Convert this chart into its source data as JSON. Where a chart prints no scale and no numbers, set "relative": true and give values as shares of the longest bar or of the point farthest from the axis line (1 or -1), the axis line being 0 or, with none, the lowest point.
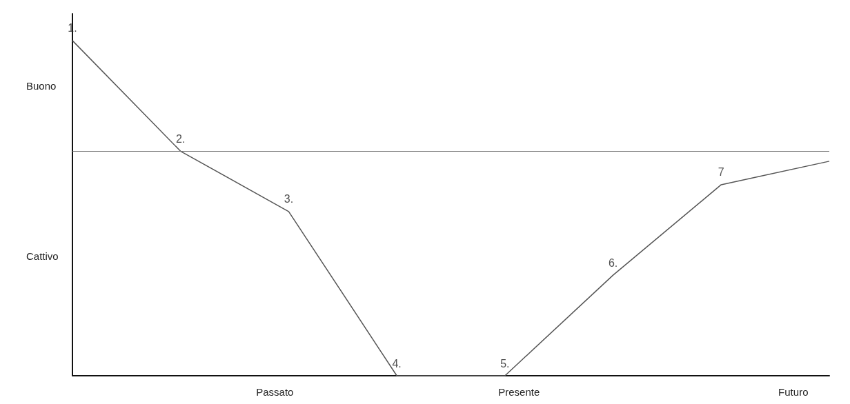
{
  "chart_data": {
    "type": "line",
    "relative": true,
    "categories": [
      null,
      null,
      null,
      null,
      null,
      null,
      null,
      null
    ],
    "values": [
      1,
      0.67,
      0.49,
      0,
      0,
      0.3,
      0.57,
      0.64
    ],
    "color": "#555555",
    "marker": "none",
    "line_style": "solid",
    "annotations": [
      "Buono",
      "Cattivo",
      "Passato",
      "Presente",
      "Futuro",
      {
        "text": "1.",
        "y": 1
      },
      {
        "text": "2.",
        "y": 0.67
      },
      {
        "text": "3.",
        "y": 0.49
      },
      {
        "text": "4.",
        "y": 0
      },
      {
        "text": "5.",
        "y": 0
      },
      {
        "text": "6.",
        "y": 0.3
      },
      {
        "text": "7",
        "y": 0.57
      }
    ],
    "ref_lines": [
      {
        "axis": "y",
        "value": 0.67,
        "color": "#777777"
      }
    ]
  }
}
